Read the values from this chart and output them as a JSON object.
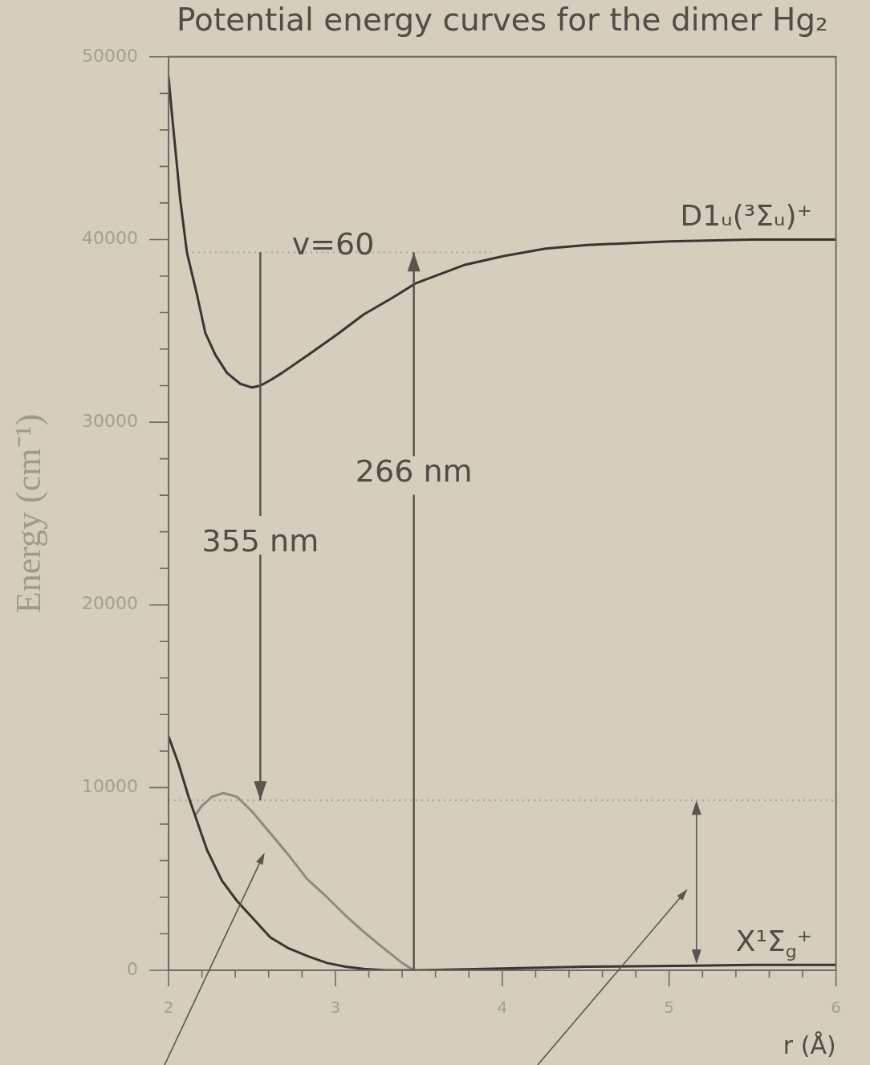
{
  "chart_data": {
    "type": "line",
    "title": "Potential energy curves for the dimer Hg₂",
    "xlabel": "r (Å)",
    "ylabel": "Energy (cm⁻¹)",
    "xlim": [
      2,
      6
    ],
    "xticks": [
      2,
      {
        "value": 2.2,
        "label": null
      },
      {
        "value": 2.4,
        "label": null
      },
      {
        "value": 2.6,
        "label": null
      },
      {
        "value": 2.8,
        "label": null
      },
      3,
      {
        "value": 3.2,
        "label": null
      },
      {
        "value": 3.4,
        "label": null
      },
      {
        "value": 3.6,
        "label": null
      },
      {
        "value": 3.8,
        "label": null
      },
      4,
      {
        "value": 4.2,
        "label": null
      },
      {
        "value": 4.4,
        "label": null
      },
      {
        "value": 4.6,
        "label": null
      },
      {
        "value": 4.8,
        "label": null
      },
      5,
      {
        "value": 5.2,
        "label": null
      },
      {
        "value": 5.4,
        "label": null
      },
      {
        "value": 5.6,
        "label": null
      },
      {
        "value": 5.8,
        "label": null
      },
      6
    ],
    "ylim": [
      0,
      50000
    ],
    "yticks": [
      0,
      {
        "value": 2000,
        "label": null
      },
      {
        "value": 4000,
        "label": null
      },
      {
        "value": 6000,
        "label": null
      },
      {
        "value": 8000,
        "label": null
      },
      10000,
      {
        "value": 12000,
        "label": null
      },
      {
        "value": 14000,
        "label": null
      },
      {
        "value": 16000,
        "label": null
      },
      {
        "value": 18000,
        "label": null
      },
      20000,
      {
        "value": 22000,
        "label": null
      },
      {
        "value": 24000,
        "label": null
      },
      {
        "value": 26000,
        "label": null
      },
      {
        "value": 28000,
        "label": null
      },
      30000,
      {
        "value": 32000,
        "label": null
      },
      {
        "value": 34000,
        "label": null
      },
      {
        "value": 36000,
        "label": null
      },
      {
        "value": 38000,
        "label": null
      },
      40000,
      {
        "value": 42000,
        "label": null
      },
      {
        "value": 44000,
        "label": null
      },
      {
        "value": 46000,
        "label": null
      },
      {
        "value": 48000,
        "label": null
      },
      50000
    ],
    "series": [
      {
        "name": "D1ᵤ(³Σᵤ)⁺",
        "color": "#3a3530",
        "x": [
          2.0,
          2.02,
          2.07,
          2.11,
          2.17,
          2.22,
          2.28,
          2.35,
          2.43,
          2.5,
          2.55,
          2.61,
          2.68,
          2.84,
          3.01,
          3.17,
          3.34,
          3.48,
          3.77,
          4.01,
          4.26,
          4.51,
          4.76,
          5.0,
          5.5,
          6.0
        ],
        "values": [
          48900,
          46900,
          42200,
          39300,
          37000,
          34900,
          33700,
          32700,
          32100,
          31900,
          32000,
          32300,
          32700,
          33700,
          34800,
          35900,
          36800,
          37600,
          38600,
          39100,
          39500,
          39700,
          39800,
          39900,
          40000,
          40000
        ]
      },
      {
        "name": "X¹Σ$_{g}$⁺",
        "color": "#3a3530",
        "x": [
          2.0,
          2.06,
          2.12,
          2.23,
          2.32,
          2.41,
          2.51,
          2.61,
          2.72,
          2.84,
          2.95,
          3.06,
          3.17,
          3.3,
          3.5,
          4.0,
          4.5,
          5.15,
          5.5,
          6.0
        ],
        "values": [
          12800,
          11300,
          9500,
          6600,
          4900,
          3800,
          2800,
          1800,
          1200,
          750,
          400,
          200,
          80,
          0,
          0,
          100,
          200,
          250,
          300,
          300
        ]
      },
      {
        "color": "#8f8a7f",
        "x": [
          2.16,
          2.2,
          2.26,
          2.33,
          2.41,
          2.5,
          2.61,
          2.72,
          2.83,
          2.95,
          3.06,
          3.17,
          3.29,
          3.4,
          3.47
        ],
        "values": [
          8500,
          9000,
          9500,
          9700,
          9500,
          8700,
          7500,
          6300,
          5000,
          4000,
          3000,
          2100,
          1200,
          400,
          0
        ]
      },
      {
        "color": "#a9a396",
        "line_style": "dotted",
        "x": [
          2.11,
          3.95
        ],
        "values": [
          39300,
          39300
        ]
      }
    ],
    "ref_lines": [
      {
        "axis": "y",
        "value": 9300,
        "color": "#a9a396",
        "line_style": "dotted"
      }
    ],
    "annotations": [
      "v=60",
      {
        "text": "355 nm",
        "x": 2.55,
        "y": 9300
      },
      {
        "text": "266 nm",
        "x": 3.47,
        "y": 39300
      }
    ]
  }
}
